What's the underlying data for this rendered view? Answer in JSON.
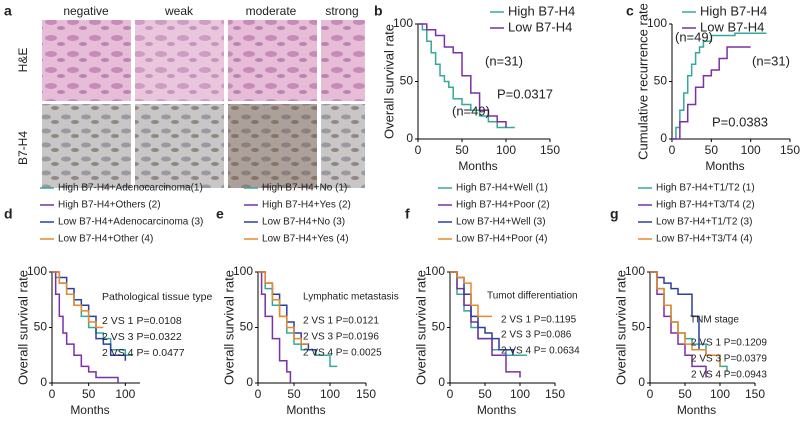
{
  "panel_a": {
    "label": "a",
    "columns": [
      "negative",
      "weak",
      "moderate",
      "strong"
    ],
    "rows": [
      "H&E",
      "B7-H4"
    ]
  },
  "chart_data": [
    {
      "type": "line",
      "step": true,
      "label": "b",
      "ylabel": "Overall survival rate",
      "xlabel": "Months",
      "xlim": [
        0,
        150
      ],
      "ylim": [
        0,
        100
      ],
      "xticks": [
        0,
        50,
        100,
        150
      ],
      "yticks": [
        0,
        50,
        100
      ],
      "series": [
        {
          "name": "High B7-H4",
          "color": "#33a89c",
          "x": [
            0,
            5,
            10,
            15,
            20,
            25,
            30,
            35,
            40,
            50,
            60,
            70,
            80,
            90,
            100,
            110
          ],
          "values": [
            100,
            95,
            85,
            75,
            65,
            55,
            50,
            45,
            35,
            30,
            25,
            20,
            15,
            10,
            10,
            10
          ]
        },
        {
          "name": "Low B7-H4",
          "color": "#7b2fa8",
          "x": [
            0,
            10,
            20,
            30,
            40,
            50,
            60,
            70,
            80,
            90,
            100
          ],
          "values": [
            100,
            95,
            90,
            80,
            75,
            55,
            40,
            25,
            20,
            15,
            10
          ]
        }
      ],
      "annotations": [
        "(n=31)",
        "(n=49)",
        "P=0.0317"
      ]
    },
    {
      "type": "line",
      "step": true,
      "label": "c",
      "ylabel": "Cumulative recurrence rate",
      "xlabel": "Months",
      "xlim": [
        0,
        150
      ],
      "ylim": [
        0,
        100
      ],
      "xticks": [
        0,
        50,
        100,
        150
      ],
      "yticks": [
        0,
        50,
        100
      ],
      "series": [
        {
          "name": "High B7-H4",
          "color": "#33a89c",
          "x": [
            0,
            5,
            10,
            15,
            20,
            25,
            30,
            35,
            40,
            50,
            60,
            80,
            120
          ],
          "values": [
            0,
            10,
            25,
            40,
            55,
            65,
            75,
            80,
            85,
            90,
            90,
            92,
            92
          ]
        },
        {
          "name": "Low B7-H4",
          "color": "#7b2fa8",
          "x": [
            0,
            10,
            20,
            30,
            40,
            50,
            60,
            70,
            100
          ],
          "values": [
            0,
            15,
            30,
            45,
            55,
            60,
            70,
            80,
            80
          ]
        }
      ],
      "annotations": [
        "(n=49)",
        "(n=31)",
        "P=0.0383"
      ]
    },
    {
      "type": "line",
      "step": true,
      "label": "d",
      "ylabel": "Overall survival rate",
      "xlabel": "Months",
      "xlim": [
        0,
        120
      ],
      "ylim": [
        0,
        100
      ],
      "xticks": [
        0,
        50,
        100
      ],
      "yticks": [
        0,
        50,
        100
      ],
      "series": [
        {
          "name": "High B7-H4+Adenocarcinoma(1)",
          "color": "#33a89c",
          "x": [
            0,
            5,
            10,
            20,
            30,
            40,
            50,
            60,
            70,
            80,
            100,
            110
          ],
          "values": [
            100,
            95,
            90,
            80,
            70,
            60,
            50,
            45,
            40,
            30,
            25,
            25
          ]
        },
        {
          "name": "High B7-H4+Others (2)",
          "color": "#7b2fa8",
          "x": [
            0,
            5,
            10,
            15,
            20,
            30,
            40,
            50,
            60,
            90
          ],
          "values": [
            100,
            80,
            60,
            45,
            35,
            25,
            15,
            10,
            5,
            0
          ]
        },
        {
          "name": "Low B7-H4+Adenocarcinoma (3)",
          "color": "#2a3f9f",
          "x": [
            0,
            10,
            20,
            30,
            40,
            50,
            60,
            70,
            80,
            100
          ],
          "values": [
            100,
            95,
            85,
            75,
            70,
            60,
            40,
            35,
            25,
            20
          ]
        },
        {
          "name": "Low B7-H4+Other (4)",
          "color": "#e8892b",
          "x": [
            0,
            10,
            20,
            30,
            40,
            50,
            60,
            70
          ],
          "values": [
            100,
            90,
            80,
            70,
            65,
            55,
            50,
            50
          ]
        }
      ],
      "annotations": [
        "Pathological tissue type",
        "2 VS 1  P=0.0108",
        "2 VS 3  P=0.0322",
        "2 VS 4  P= 0.0477"
      ]
    },
    {
      "type": "line",
      "step": true,
      "label": "e",
      "ylabel": "Overall survival rate",
      "xlabel": "Months",
      "xlim": [
        0,
        150
      ],
      "ylim": [
        0,
        100
      ],
      "xticks": [
        0,
        50,
        100,
        150
      ],
      "yticks": [
        0,
        50,
        100
      ],
      "series": [
        {
          "name": "High B7-H4+No (1)",
          "color": "#33a89c",
          "x": [
            0,
            10,
            20,
            30,
            40,
            50,
            60,
            80,
            100,
            110
          ],
          "values": [
            100,
            85,
            70,
            60,
            45,
            35,
            30,
            25,
            15,
            15
          ]
        },
        {
          "name": "High B7-H4+Yes (2)",
          "color": "#7b2fa8",
          "x": [
            0,
            5,
            10,
            20,
            30,
            40,
            45
          ],
          "values": [
            100,
            80,
            60,
            40,
            20,
            10,
            0
          ]
        },
        {
          "name": "Low B7-H4+No (3)",
          "color": "#2a3f9f",
          "x": [
            0,
            10,
            20,
            30,
            40,
            50,
            60,
            70,
            80
          ],
          "values": [
            100,
            90,
            80,
            70,
            55,
            45,
            35,
            30,
            25
          ]
        },
        {
          "name": "Low B7-H4+Yes (4)",
          "color": "#e8892b",
          "x": [
            0,
            10,
            20,
            30,
            40,
            50,
            60,
            70
          ],
          "values": [
            100,
            90,
            75,
            60,
            50,
            40,
            35,
            35
          ]
        }
      ],
      "annotations": [
        "Lymphatic metastasis",
        "2 VS 1  P=0.0121",
        "2 VS 3  P=0.0196",
        "2 VS 4  P= 0.0025"
      ]
    },
    {
      "type": "line",
      "step": true,
      "label": "f",
      "ylabel": "Overall survival rate",
      "xlabel": "Months",
      "xlim": [
        0,
        150
      ],
      "ylim": [
        0,
        100
      ],
      "xticks": [
        0,
        50,
        100,
        150
      ],
      "yticks": [
        0,
        50,
        100
      ],
      "series": [
        {
          "name": "High B7-H4+Well (1)",
          "color": "#33a89c",
          "x": [
            0,
            10,
            20,
            30,
            40,
            60,
            80,
            100,
            110
          ],
          "values": [
            100,
            80,
            65,
            50,
            40,
            30,
            25,
            25,
            25
          ]
        },
        {
          "name": "High B7-H4+Poor (2)",
          "color": "#7b2fa8",
          "x": [
            0,
            10,
            20,
            30,
            40,
            60,
            80,
            100
          ],
          "values": [
            100,
            85,
            70,
            55,
            40,
            25,
            10,
            5
          ]
        },
        {
          "name": "Low B7-H4+Well (3)",
          "color": "#2a3f9f",
          "x": [
            0,
            10,
            20,
            30,
            40,
            50,
            60,
            70,
            90
          ],
          "values": [
            100,
            95,
            80,
            60,
            50,
            45,
            40,
            30,
            25
          ]
        },
        {
          "name": "Low B7-H4+Poor (4)",
          "color": "#e8892b",
          "x": [
            0,
            10,
            20,
            30,
            40,
            50,
            60
          ],
          "values": [
            100,
            95,
            90,
            70,
            60,
            60,
            60
          ]
        }
      ],
      "annotations": [
        "Tumot differentiation",
        "2 VS 1  P=0.1195",
        "2 VS 3  P=0.086",
        "2 VS 4  P= 0.0634"
      ]
    },
    {
      "type": "line",
      "step": true,
      "label": "g",
      "ylabel": "Overall survival rate",
      "xlabel": "Months",
      "xlim": [
        0,
        150
      ],
      "ylim": [
        0,
        100
      ],
      "xticks": [
        0,
        50,
        100,
        150
      ],
      "yticks": [
        0,
        50,
        100
      ],
      "series": [
        {
          "name": "High B7-H4+T1/T2 (1)",
          "color": "#33a89c",
          "x": [
            0,
            10,
            20,
            30,
            40,
            50,
            60,
            80,
            100,
            110
          ],
          "values": [
            100,
            85,
            70,
            55,
            45,
            40,
            35,
            25,
            15,
            10
          ]
        },
        {
          "name": "High B7-H4+T3/T4 (2)",
          "color": "#7b2fa8",
          "x": [
            0,
            10,
            20,
            30,
            40,
            50,
            60,
            80
          ],
          "values": [
            100,
            80,
            60,
            45,
            35,
            25,
            15,
            5
          ]
        },
        {
          "name": "Low B7-H4+T1/T2 (3)",
          "color": "#2a3f9f",
          "x": [
            0,
            10,
            20,
            30,
            40,
            50,
            60,
            70
          ],
          "values": [
            100,
            95,
            90,
            85,
            80,
            80,
            60,
            30
          ]
        },
        {
          "name": "Low B7-H4+T3/T4 (4)",
          "color": "#e8892b",
          "x": [
            0,
            10,
            20,
            30,
            40,
            50,
            60,
            80,
            100
          ],
          "values": [
            100,
            85,
            70,
            55,
            45,
            35,
            30,
            25,
            15
          ]
        }
      ],
      "annotations": [
        "TNM stage",
        "2 VS 1  P=0.1209",
        "2 VS 3  P=0.0379",
        "2 VS 4  P=0.0943"
      ]
    }
  ]
}
